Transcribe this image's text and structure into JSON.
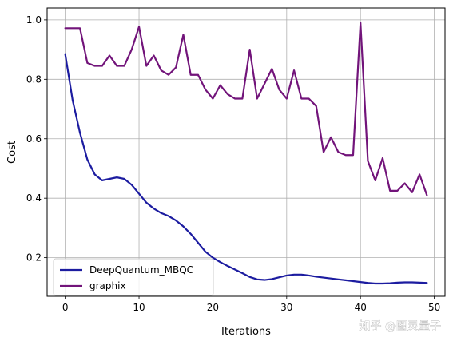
{
  "chart_data": {
    "type": "line",
    "xlabel": "Iterations",
    "ylabel": "Cost",
    "xlim": [
      -2.45,
      51.45
    ],
    "ylim": [
      0.07,
      1.04
    ],
    "xticks": [
      0,
      10,
      20,
      30,
      40,
      50
    ],
    "yticks": [
      0.2,
      0.4,
      0.6,
      0.8,
      1.0
    ],
    "ytick_labels": [
      "0.2",
      "0.4",
      "0.6",
      "0.8",
      "1.0"
    ],
    "grid": true,
    "legend_position": "lower-left",
    "series": [
      {
        "name": "DeepQuantum_MBQC",
        "color": "#1c1ca0",
        "x": [
          0,
          1,
          2,
          3,
          4,
          5,
          6,
          7,
          8,
          9,
          10,
          11,
          12,
          13,
          14,
          15,
          16,
          17,
          18,
          19,
          20,
          21,
          22,
          23,
          24,
          25,
          26,
          27,
          28,
          29,
          30,
          31,
          32,
          33,
          34,
          35,
          36,
          37,
          38,
          39,
          40,
          41,
          42,
          43,
          44,
          45,
          46,
          47,
          48,
          49
        ],
        "values": [
          0.885,
          0.73,
          0.62,
          0.53,
          0.48,
          0.46,
          0.465,
          0.47,
          0.465,
          0.445,
          0.415,
          0.385,
          0.365,
          0.35,
          0.34,
          0.325,
          0.305,
          0.28,
          0.25,
          0.22,
          0.2,
          0.185,
          0.172,
          0.16,
          0.148,
          0.135,
          0.127,
          0.125,
          0.128,
          0.134,
          0.14,
          0.143,
          0.143,
          0.14,
          0.136,
          0.133,
          0.13,
          0.127,
          0.124,
          0.121,
          0.118,
          0.115,
          0.113,
          0.113,
          0.114,
          0.116,
          0.117,
          0.117,
          0.116,
          0.115
        ]
      },
      {
        "name": "graphix",
        "color": "#72147a",
        "x": [
          0,
          1,
          2,
          3,
          4,
          5,
          6,
          7,
          8,
          9,
          10,
          11,
          12,
          13,
          14,
          15,
          16,
          17,
          18,
          19,
          20,
          21,
          22,
          23,
          24,
          25,
          26,
          27,
          28,
          29,
          30,
          31,
          32,
          33,
          34,
          35,
          36,
          37,
          38,
          39,
          40,
          41,
          42,
          43,
          44,
          45,
          46,
          47,
          48,
          49
        ],
        "values": [
          0.972,
          0.972,
          0.972,
          0.855,
          0.845,
          0.845,
          0.88,
          0.845,
          0.845,
          0.9,
          0.977,
          0.845,
          0.88,
          0.83,
          0.815,
          0.84,
          0.95,
          0.815,
          0.815,
          0.765,
          0.735,
          0.78,
          0.75,
          0.735,
          0.735,
          0.9,
          0.735,
          0.785,
          0.835,
          0.765,
          0.735,
          0.83,
          0.735,
          0.735,
          0.71,
          0.555,
          0.605,
          0.555,
          0.545,
          0.545,
          0.99,
          0.525,
          0.46,
          0.535,
          0.425,
          0.425,
          0.45,
          0.42,
          0.48,
          0.41
        ]
      }
    ]
  },
  "watermark": "知乎 @图灵量子"
}
